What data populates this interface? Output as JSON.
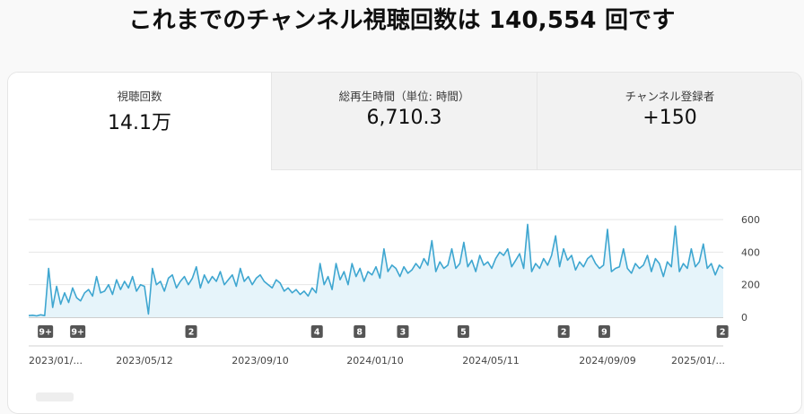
{
  "headline": "これまでのチャンネル視聴回数は 140,554 回です",
  "tabs": [
    {
      "label": "視聴回数",
      "value": "14.1万"
    },
    {
      "label": "総再生時間（単位: 時間）",
      "value": "6,710.3"
    },
    {
      "label": "チャンネル登録者",
      "value": "+150"
    }
  ],
  "chart_data": {
    "type": "area",
    "y_ticks": [
      "600",
      "400",
      "200",
      "0"
    ],
    "ylim": [
      0,
      600
    ],
    "x_labels": [
      "2023/01/...",
      "2023/05/12",
      "2023/09/10",
      "2024/01/10",
      "2024/05/11",
      "2024/09/09",
      "2025/01/..."
    ],
    "x_start": "2023/01/12",
    "x_end": "2025/02/12",
    "series": [
      {
        "values": [
          10,
          12,
          8,
          15,
          10,
          300,
          60,
          190,
          80,
          150,
          90,
          180,
          120,
          100,
          150,
          170,
          130,
          250,
          150,
          160,
          200,
          140,
          230,
          170,
          220,
          180,
          250,
          160,
          200,
          190,
          20,
          300,
          200,
          220,
          160,
          240,
          260,
          180,
          220,
          250,
          200,
          240,
          310,
          180,
          260,
          210,
          250,
          220,
          280,
          200,
          230,
          260,
          190,
          300,
          220,
          250,
          200,
          240,
          260,
          220,
          200,
          180,
          230,
          210,
          160,
          180,
          150,
          170,
          140,
          160,
          130,
          180,
          150,
          330,
          200,
          250,
          170,
          330,
          230,
          280,
          200,
          330,
          250,
          300,
          220,
          280,
          260,
          310,
          240,
          420,
          280,
          320,
          300,
          250,
          310,
          270,
          290,
          330,
          300,
          360,
          320,
          470,
          280,
          340,
          300,
          320,
          420,
          300,
          330,
          460,
          310,
          350,
          280,
          380,
          320,
          340,
          300,
          360,
          400,
          380,
          420,
          310,
          350,
          390,
          300,
          570,
          280,
          330,
          300,
          360,
          320,
          380,
          500,
          310,
          420,
          350,
          380,
          290,
          340,
          310,
          360,
          380,
          330,
          300,
          320,
          540,
          280,
          300,
          310,
          420,
          300,
          270,
          330,
          300,
          320,
          380,
          280,
          360,
          330,
          250,
          340,
          310,
          560,
          280,
          330,
          300,
          420,
          310,
          340,
          450,
          300,
          330,
          260,
          320,
          300
        ]
      }
    ],
    "badges": [
      {
        "label": "9+",
        "x": 0.01
      },
      {
        "label": "9+",
        "x": 0.057
      },
      {
        "label": "2",
        "x": 0.222
      },
      {
        "label": "4",
        "x": 0.405
      },
      {
        "label": "8",
        "x": 0.467
      },
      {
        "label": "3",
        "x": 0.53
      },
      {
        "label": "5",
        "x": 0.618
      },
      {
        "label": "2",
        "x": 0.764
      },
      {
        "label": "9",
        "x": 0.823
      },
      {
        "label": "2",
        "x": 0.995
      }
    ],
    "grid": true,
    "line_color": "#3ea6d0",
    "fill_color": "#e6f4fa"
  }
}
